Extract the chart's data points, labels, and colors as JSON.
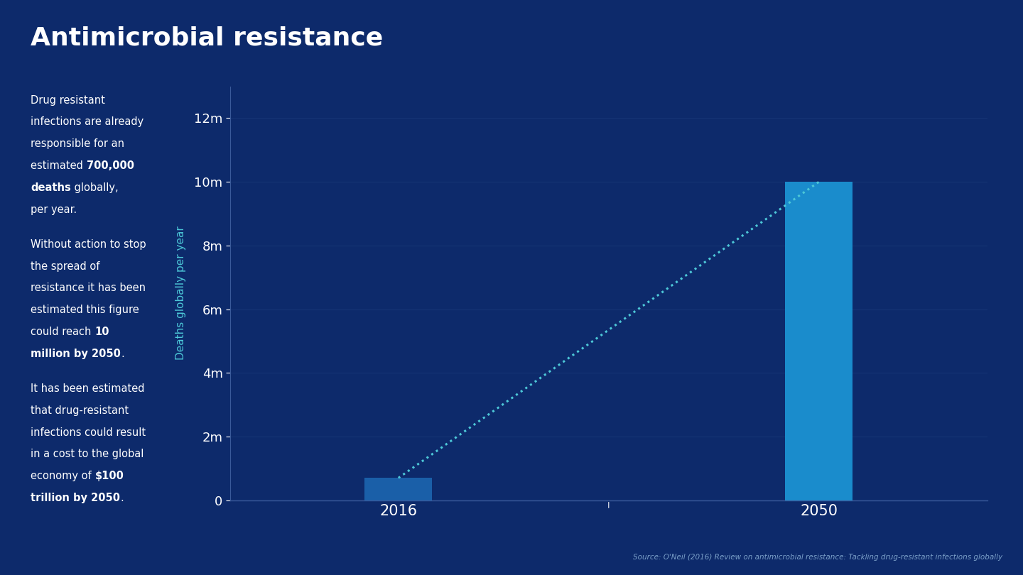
{
  "title": "Antimicrobial resistance",
  "background_color": "#0d2a6b",
  "bar_color_2016": "#1a5fa8",
  "bar_color_2050": "#1a8ccc",
  "dotted_line_color": "#4dc8d8",
  "axis_label_color": "#4dc8d8",
  "tick_label_color": "#ffffff",
  "text_color": "#ffffff",
  "title_fontsize": 26,
  "bar_2016_value": 0.7,
  "bar_2050_value": 10,
  "ylim_max": 13,
  "yticks": [
    0,
    2,
    4,
    6,
    8,
    10,
    12
  ],
  "ytick_labels": [
    "0",
    "2m",
    "4m",
    "6m",
    "8m",
    "10m",
    "12m"
  ],
  "x_labels": [
    "2016",
    "2050"
  ],
  "ylabel": "Deaths globally per year",
  "source_text": "Source: O'Neil (2016) Review on antimicrobial resistance: Tackling drug-resistant infections globally",
  "source_color": "#7a9fc8"
}
